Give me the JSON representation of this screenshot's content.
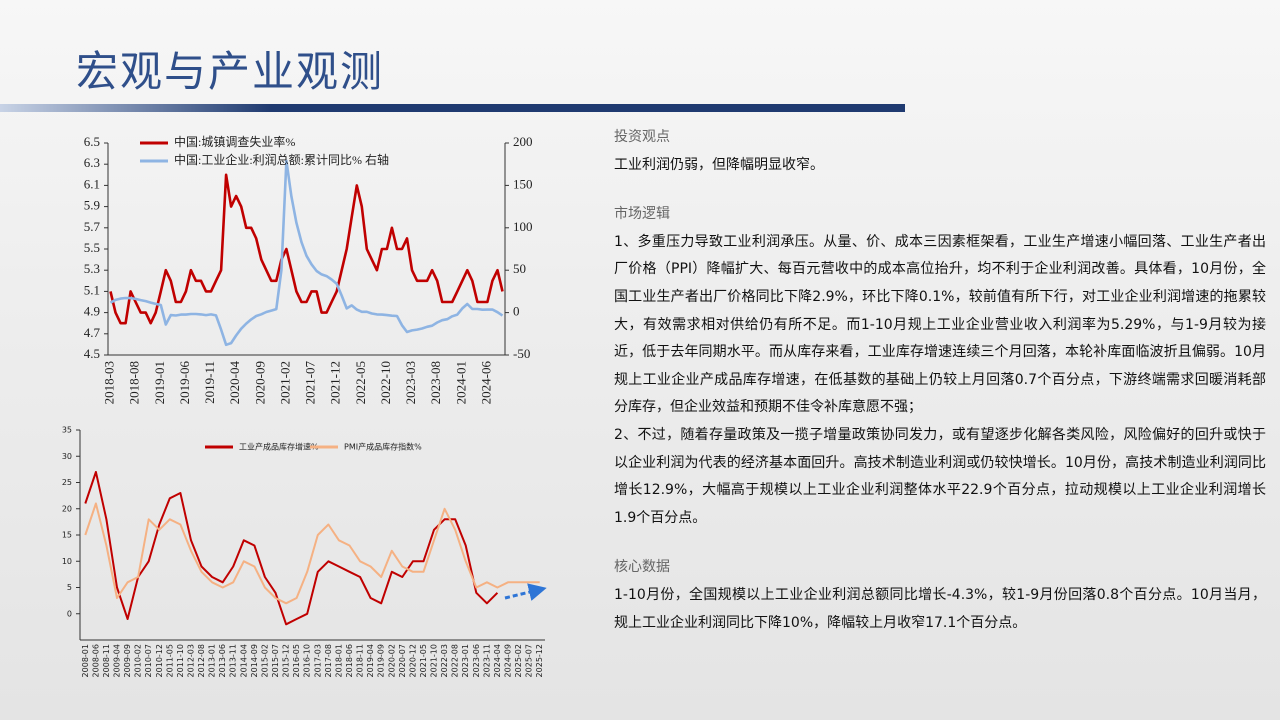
{
  "header": {
    "title": "宏观与产业观测"
  },
  "chart_data": [
    {
      "type": "line",
      "legend": [
        "中国:城镇调查失业率%",
        "中国:工业企业:利润总额:累计同比% 右轴"
      ],
      "categories": [
        "2018-03",
        null,
        null,
        null,
        null,
        "2018-08",
        null,
        null,
        null,
        null,
        "2019-01",
        null,
        null,
        null,
        null,
        "2019-06",
        null,
        null,
        null,
        null,
        "2019-11",
        null,
        null,
        null,
        null,
        "2020-04",
        null,
        null,
        null,
        null,
        "2020-09",
        null,
        null,
        null,
        null,
        "2021-02",
        null,
        null,
        null,
        null,
        "2021-07",
        null,
        null,
        null,
        null,
        "2021-12",
        null,
        null,
        null,
        null,
        "2022-05",
        null,
        null,
        null,
        null,
        "2022-10",
        null,
        null,
        null,
        null,
        "2023-03",
        null,
        null,
        null,
        null,
        "2023-08",
        null,
        null,
        null,
        null,
        "2024-01",
        null,
        null,
        null,
        null,
        "2024-06",
        null,
        null,
        null
      ],
      "ylim": [
        4.5,
        6.5
      ],
      "yticks": [
        4.5,
        4.7,
        4.9,
        5.1,
        5.3,
        5.5,
        5.7,
        5.9,
        6.1,
        6.3,
        6.5
      ],
      "y2lim": [
        -50,
        200
      ],
      "y2ticks": [
        -50,
        0,
        50,
        100,
        150,
        200
      ],
      "series": [
        {
          "name": "中国:城镇调查失业率%",
          "color": "#c00000",
          "values": [
            5.1,
            4.9,
            4.8,
            4.8,
            5.1,
            5.0,
            4.9,
            4.9,
            4.8,
            4.9,
            5.1,
            5.3,
            5.2,
            5.0,
            5.0,
            5.1,
            5.3,
            5.2,
            5.2,
            5.1,
            5.1,
            5.2,
            5.3,
            6.2,
            5.9,
            6.0,
            5.9,
            5.7,
            5.7,
            5.6,
            5.4,
            5.3,
            5.2,
            5.2,
            5.4,
            5.5,
            5.3,
            5.1,
            5.0,
            5.0,
            5.1,
            5.1,
            4.9,
            4.9,
            5.0,
            5.1,
            5.3,
            5.5,
            5.8,
            6.1,
            5.9,
            5.5,
            5.4,
            5.3,
            5.5,
            5.5,
            5.7,
            5.5,
            5.5,
            5.6,
            5.3,
            5.2,
            5.2,
            5.2,
            5.3,
            5.2,
            5.0,
            5.0,
            5.0,
            5.1,
            5.2,
            5.3,
            5.2,
            5.0,
            5.0,
            5.0,
            5.2,
            5.3,
            5.1
          ]
        },
        {
          "name": "中国:工业企业:利润总额:累计同比% 右轴",
          "color": "#8eb4e3",
          "axis": "y2",
          "values": [
            11.6,
            15,
            16.5,
            17.2,
            17.1,
            16.2,
            14.7,
            13.6,
            11.8,
            10.3,
            9,
            -14,
            -3,
            -3.4,
            -2.3,
            -2.4,
            -1.7,
            -1.7,
            -2.1,
            -2.9,
            -2.1,
            -3.3,
            -20,
            -38,
            -36,
            -27,
            -19,
            -13,
            -8,
            -4,
            -2,
            0.7,
            2.4,
            4.1,
            50,
            179,
            137,
            106,
            83,
            67,
            57,
            49,
            45,
            43,
            39,
            34,
            20,
            5,
            8.5,
            3.5,
            1,
            1,
            -1.1,
            -2.1,
            -2.3,
            -3,
            -3.6,
            -4,
            -15,
            -22.9,
            -21,
            -20,
            -18.8,
            -16.8,
            -15.5,
            -11.7,
            -9,
            -7.8,
            -4.4,
            -2.3,
            5,
            10.2,
            4.3,
            4.3,
            3.4,
            3.5,
            3.6,
            0.5,
            -3.5
          ]
        }
      ]
    },
    {
      "type": "line",
      "legend": [
        "工业产成品库存增速%",
        "PMI产成品库存指数%"
      ],
      "categories": [
        "2008-01",
        "2008-06",
        "2008-11",
        "2009-04",
        "2009-09",
        "2010-02",
        "2010-07",
        "2010-12",
        "2011-05",
        "2011-10",
        "2012-03",
        "2012-08",
        "2013-01",
        "2013-06",
        "2013-11",
        "2014-04",
        "2014-09",
        "2015-02",
        "2015-07",
        "2015-12",
        "2016-05",
        "2016-10",
        "2017-03",
        "2017-08",
        "2018-01",
        "2018-06",
        "2018-11",
        "2019-04",
        "2019-09",
        "2020-02",
        "2020-07",
        "2020-12",
        "2021-05",
        "2021-10",
        "2022-03",
        "2022-08",
        "2023-01",
        "2023-06",
        "2023-11",
        "2024-04",
        "2024-09",
        "2025-02",
        "2025-07",
        "2025-12"
      ],
      "ylim": [
        -5,
        35
      ],
      "yticks": [
        0,
        5,
        10,
        15,
        20,
        25,
        30,
        35
      ],
      "series": [
        {
          "name": "工业产成品库存增速%",
          "color": "#c00000",
          "values": [
            21,
            27,
            18,
            5,
            -1,
            7,
            10,
            17,
            22,
            23,
            14,
            9,
            7,
            6,
            9,
            14,
            13,
            7,
            4,
            -2,
            -1,
            0,
            8,
            10,
            9,
            8,
            7,
            3,
            2,
            8,
            7,
            10,
            10,
            16,
            18,
            18,
            13,
            4,
            2,
            4,
            null,
            null,
            null,
            null
          ]
        },
        {
          "name": "PMI产成品库存指数%",
          "color": "#f5b183",
          "values": [
            15,
            21,
            13,
            3,
            6,
            7,
            18,
            16,
            18,
            17,
            12,
            8,
            6,
            5,
            6,
            10,
            9,
            5,
            3,
            2,
            3,
            8,
            15,
            17,
            14,
            13,
            10,
            9,
            7,
            12,
            9,
            8,
            8,
            14,
            20,
            16,
            10,
            5,
            6,
            5,
            6,
            6,
            6,
            6
          ]
        }
      ]
    }
  ],
  "sections": [
    {
      "heading": "投资观点",
      "paragraphs": [
        "工业利润仍弱，但降幅明显收窄。"
      ]
    },
    {
      "heading": "市场逻辑",
      "paragraphs": [
        "1、多重压力导致工业利润承压。从量、价、成本三因素框架看，工业生产增速小幅回落、工业生产者出厂价格（PPI）降幅扩大、每百元营收中的成本高位抬升，均不利于企业利润改善。具体看，10月份，全国工业生产者出厂价格同比下降2.9%，环比下降0.1%，较前值有所下行，对工业企业利润增速的拖累较大，有效需求相对供给仍有所不足。而1-10月规上工业企业营业收入利润率为5.29%，与1-9月较为接近，低于去年同期水平。而从库存来看，工业库存增速连续三个月回落，本轮补库面临波折且偏弱。10月规上工业企业产成品库存增速，在低基数的基础上仍较上月回落0.7个百分点，下游终端需求回暖消耗部分库存，但企业效益和预期不佳令补库意愿不强；",
        "2、不过，随着存量政策及一揽子增量政策协同发力，或有望逐步化解各类风险，风险偏好的回升或快于以企业利润为代表的经济基本面回升。高技术制造业利润或仍较快增长。10月份，高技术制造业利润同比增长12.9%，大幅高于规模以上工业企业利润整体水平22.9个百分点，拉动规模以上工业企业利润增长1.9个百分点。"
      ]
    },
    {
      "heading": "核心数据",
      "paragraphs": [
        "1-10月份，全国规模以上工业企业利润总额同比增长-4.3%，较1-9月份回落0.8个百分点。10月当月，规上工业企业利润同比下降10%，降幅较上月收窄17.1个百分点。"
      ]
    }
  ]
}
